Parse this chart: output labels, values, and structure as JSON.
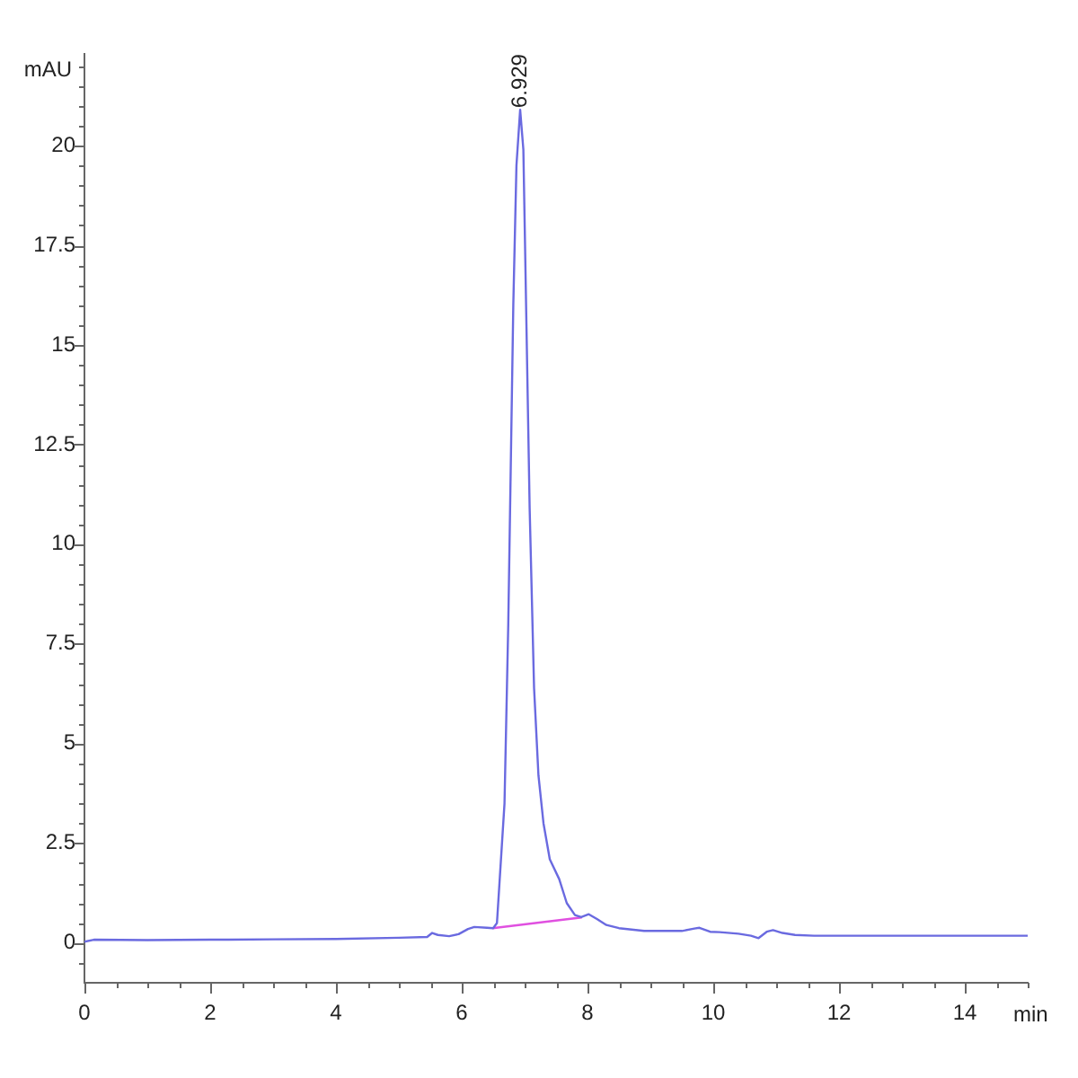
{
  "chart_data": {
    "type": "line",
    "xlabel": "min",
    "ylabel": "mAU",
    "marker": "none",
    "xlim": [
      0,
      15
    ],
    "ylim": [
      -1,
      22.3
    ],
    "xticks": [
      0,
      {
        "value": 0.5,
        "label": null
      },
      {
        "value": 1,
        "label": null
      },
      {
        "value": 1.5,
        "label": null
      },
      2,
      {
        "value": 2.5,
        "label": null
      },
      {
        "value": 3,
        "label": null
      },
      {
        "value": 3.5,
        "label": null
      },
      4,
      {
        "value": 4.5,
        "label": null
      },
      {
        "value": 5,
        "label": null
      },
      {
        "value": 5.5,
        "label": null
      },
      6,
      {
        "value": 6.5,
        "label": null
      },
      {
        "value": 7,
        "label": null
      },
      {
        "value": 7.5,
        "label": null
      },
      8,
      {
        "value": 8.5,
        "label": null
      },
      {
        "value": 9,
        "label": null
      },
      {
        "value": 9.5,
        "label": null
      },
      10,
      {
        "value": 10.5,
        "label": null
      },
      {
        "value": 11,
        "label": null
      },
      {
        "value": 11.5,
        "label": null
      },
      12,
      {
        "value": 12.5,
        "label": null
      },
      {
        "value": 13,
        "label": null
      },
      {
        "value": 13.5,
        "label": null
      },
      14,
      {
        "value": 14.5,
        "label": null
      },
      {
        "value": 15,
        "label": null
      }
    ],
    "yticks": [
      {
        "value": -0.5,
        "label": null
      },
      0,
      {
        "value": 0.5,
        "label": null
      },
      {
        "value": 1,
        "label": null
      },
      {
        "value": 1.5,
        "label": null
      },
      {
        "value": 2,
        "label": null
      },
      2.5,
      {
        "value": 3,
        "label": null
      },
      {
        "value": 3.5,
        "label": null
      },
      {
        "value": 4,
        "label": null
      },
      {
        "value": 4.5,
        "label": null
      },
      5,
      {
        "value": 5.5,
        "label": null
      },
      {
        "value": 6,
        "label": null
      },
      {
        "value": 6.5,
        "label": null
      },
      {
        "value": 7,
        "label": null
      },
      7.5,
      {
        "value": 8,
        "label": null
      },
      {
        "value": 8.5,
        "label": null
      },
      {
        "value": 9,
        "label": null
      },
      {
        "value": 9.5,
        "label": null
      },
      10,
      {
        "value": 10.5,
        "label": null
      },
      {
        "value": 11,
        "label": null
      },
      {
        "value": 11.5,
        "label": null
      },
      {
        "value": 12,
        "label": null
      },
      12.5,
      {
        "value": 13,
        "label": null
      },
      {
        "value": 13.5,
        "label": null
      },
      {
        "value": 14,
        "label": null
      },
      {
        "value": 14.5,
        "label": null
      },
      15,
      {
        "value": 15.5,
        "label": null
      },
      {
        "value": 16,
        "label": null
      },
      {
        "value": 16.5,
        "label": null
      },
      {
        "value": 17,
        "label": null
      },
      17.5,
      {
        "value": 18,
        "label": null
      },
      {
        "value": 18.5,
        "label": null
      },
      {
        "value": 19,
        "label": null
      },
      {
        "value": 19.5,
        "label": null
      },
      20,
      {
        "value": 20.5,
        "label": null
      },
      {
        "value": 21,
        "label": null
      },
      {
        "value": 21.5,
        "label": null
      },
      {
        "value": 22,
        "label": null
      }
    ],
    "series": [
      {
        "color": "#6a6ae0",
        "x": [
          0,
          0.15,
          1,
          2,
          3,
          4,
          5,
          5.45,
          5.53,
          5.62,
          5.8,
          5.95,
          6.1,
          6.2,
          6.4,
          6.5,
          6.56,
          6.6,
          6.68,
          6.74,
          6.77,
          6.82,
          6.87,
          6.929,
          6.98,
          7.03,
          7.08,
          7.15,
          7.22,
          7.3,
          7.4,
          7.55,
          7.67,
          7.8,
          7.9,
          8.02,
          8.15,
          8.3,
          8.5,
          8.9,
          9.5,
          9.7,
          9.78,
          9.95,
          10.1,
          10.4,
          10.6,
          10.72,
          10.85,
          10.95,
          11.1,
          11.3,
          11.6,
          15
        ],
        "values": [
          0.03,
          0.08,
          0.07,
          0.08,
          0.09,
          0.1,
          0.13,
          0.15,
          0.25,
          0.2,
          0.17,
          0.22,
          0.35,
          0.4,
          0.38,
          0.37,
          0.5,
          1.5,
          3.5,
          8,
          11,
          16,
          19.5,
          20.9,
          19.9,
          15.4,
          10.9,
          6.4,
          4.2,
          3,
          2.1,
          1.6,
          1,
          0.7,
          0.65,
          0.72,
          0.6,
          0.45,
          0.37,
          0.3,
          0.3,
          0.36,
          0.38,
          0.28,
          0.27,
          0.23,
          0.18,
          0.12,
          0.28,
          0.32,
          0.25,
          0.2,
          0.18,
          0.18
        ]
      },
      {
        "type": "line",
        "color": "#e050e0",
        "x": [
          6.49,
          7.91
        ],
        "values": [
          0.37,
          0.64
        ]
      }
    ],
    "annotations": [
      {
        "text": "6.929",
        "x": 6.929,
        "y": 20.9
      }
    ]
  }
}
